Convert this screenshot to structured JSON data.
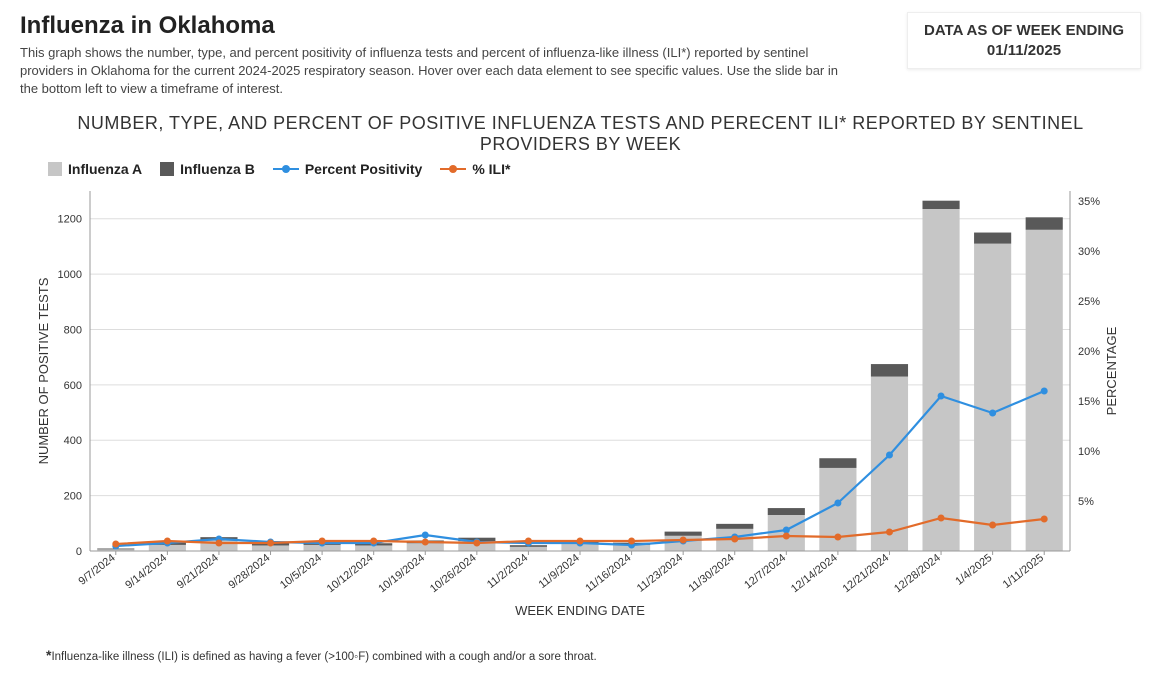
{
  "header": {
    "title": "Influenza in Oklahoma",
    "subtitle": "This graph shows the number, type, and percent positivity of influenza tests and percent of influenza-like illness (ILI*) reported by sentinel providers in Oklahoma for the current 2024-2025 respiratory season. Hover over each data element to see specific values. Use the slide bar in the bottom left to view a timeframe of interest.",
    "data_as_of_label": "DATA AS OF WEEK ENDING",
    "data_as_of_date": "01/11/2025"
  },
  "chart": {
    "title": "NUMBER, TYPE, AND PERCENT OF POSITIVE INFLUENZA TESTS AND PERECENT ILI* REPORTED BY SENTINEL PROVIDERS BY WEEK",
    "x_label": "WEEK ENDING DATE",
    "y1_label": "NUMBER OF POSITIVE TESTS",
    "y2_label": "PERCENTAGE",
    "y1_lim": [
      0,
      1300
    ],
    "y1_ticks": [
      0,
      200,
      400,
      600,
      800,
      1000,
      1200
    ],
    "y2_lim": [
      0,
      36
    ],
    "y2_ticks": [
      5,
      10,
      15,
      20,
      25,
      30,
      35
    ],
    "y2_tick_suffix": "%",
    "categories": [
      "9/7/2024",
      "9/14/2024",
      "9/21/2024",
      "9/28/2024",
      "10/5/2024",
      "10/12/2024",
      "10/19/2024",
      "10/26/2024",
      "11/2/2024",
      "11/9/2024",
      "11/16/2024",
      "11/23/2024",
      "11/30/2024",
      "12/7/2024",
      "12/14/2024",
      "12/21/2024",
      "12/28/2024",
      "1/4/2025",
      "1/11/2025"
    ],
    "series": {
      "influenza_a": {
        "label": "Influenza A",
        "type": "bar",
        "color": "#c6c6c6",
        "values": [
          6,
          22,
          38,
          20,
          22,
          20,
          28,
          36,
          15,
          28,
          22,
          55,
          80,
          130,
          300,
          630,
          1235,
          1110,
          1160
        ]
      },
      "influenza_b": {
        "label": "Influenza B",
        "type": "bar_stack",
        "color": "#595959",
        "values": [
          3,
          12,
          12,
          10,
          10,
          8,
          10,
          12,
          6,
          10,
          8,
          15,
          18,
          25,
          35,
          45,
          30,
          40,
          45
        ]
      },
      "percent_positivity": {
        "label": "Percent Positivity",
        "type": "line",
        "color": "#2f8fe0",
        "values": [
          0.5,
          0.8,
          1.2,
          0.9,
          0.8,
          0.8,
          1.6,
          0.9,
          0.8,
          0.8,
          0.6,
          1.0,
          1.4,
          2.1,
          4.8,
          9.6,
          15.5,
          13.8,
          16.0
        ]
      },
      "percent_ili": {
        "label": "% ILI*",
        "type": "line",
        "color": "#e26b2a",
        "values": [
          0.7,
          1.0,
          0.8,
          0.8,
          1.0,
          1.0,
          0.9,
          0.8,
          1.0,
          1.0,
          1.0,
          1.1,
          1.2,
          1.5,
          1.4,
          1.9,
          3.3,
          2.6,
          3.2
        ]
      }
    },
    "bar_width_ratio": 0.72,
    "grid_color": "#dddddd",
    "axis_color": "#999999",
    "background": "#ffffff",
    "label_fontsize": 13,
    "tick_fontsize": 11,
    "marker_radius": 3.5,
    "line_width": 2.2
  },
  "footnote": "Influenza-like illness (ILI) is defined as having a fever (>100◦F) combined with a cough and/or a sore throat."
}
